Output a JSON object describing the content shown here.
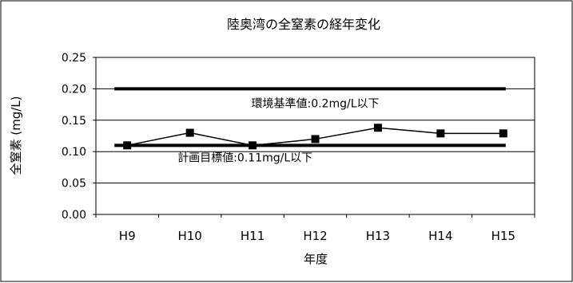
{
  "chart_data": {
    "type": "line",
    "title": "陸奥湾の全窒素の経年変化",
    "xlabel": "年度",
    "ylabel": "全窒素 (mg/L)",
    "categories": [
      "H9",
      "H10",
      "H11",
      "H12",
      "H13",
      "H14",
      "H15"
    ],
    "ylim": [
      0,
      0.25
    ],
    "yticks": [
      "0.00",
      "0.05",
      "0.10",
      "0.15",
      "0.20",
      "0.25"
    ],
    "grid": true,
    "legend": "none",
    "series": [
      {
        "values": [
          0.11,
          0.13,
          0.11,
          0.12,
          0.138,
          0.129,
          0.129
        ],
        "marker": "square",
        "color": "#000000"
      }
    ],
    "reference_lines": [
      {
        "label": "環境基準値:0.2mg/L以下",
        "value": 0.2
      },
      {
        "label": "計画目標値:0.11mg/L以下",
        "value": 0.11
      }
    ]
  }
}
